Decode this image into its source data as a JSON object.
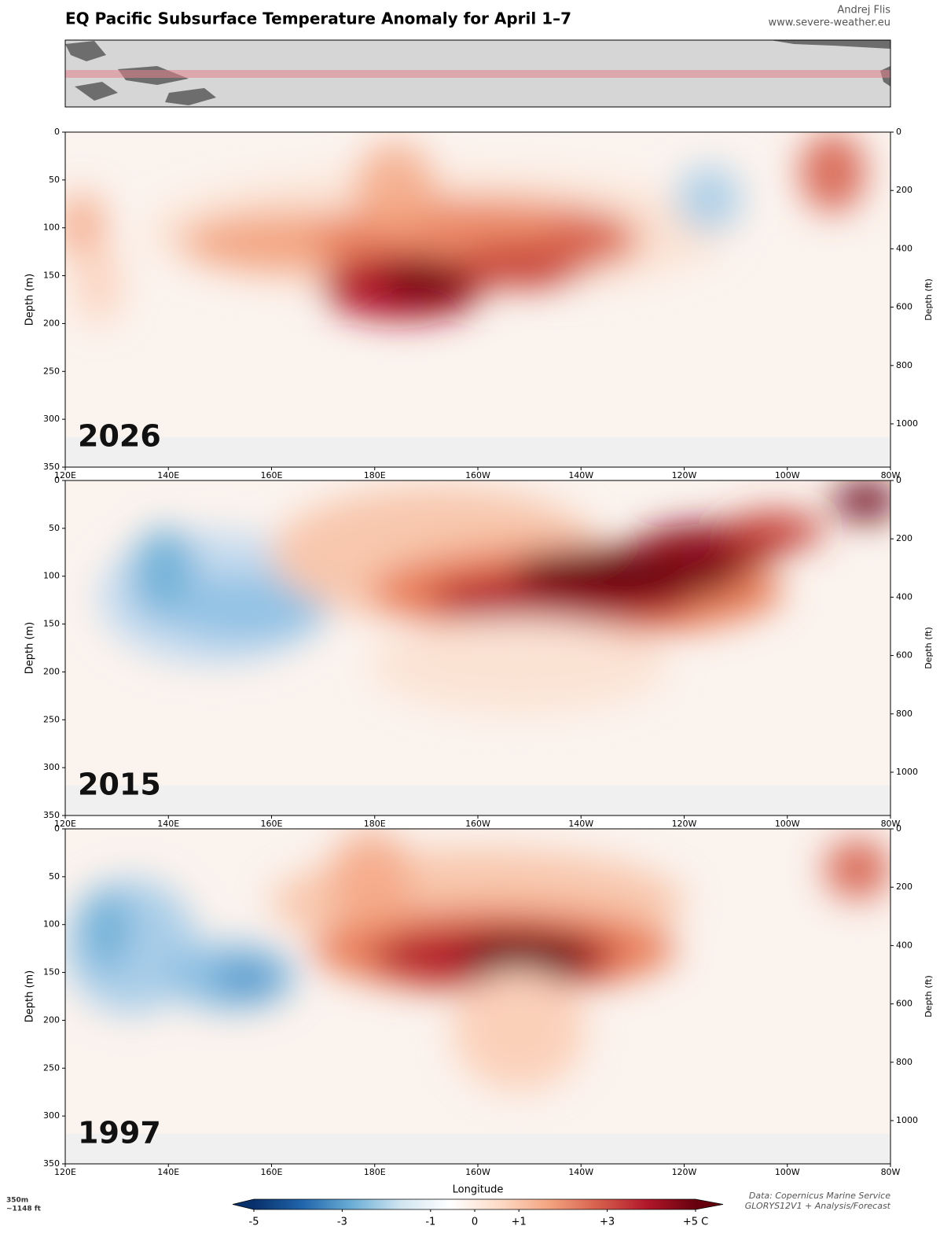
{
  "title": "EQ Pacific Subsurface Temperature Anomaly for April 1–7",
  "author": "Andrej Flis",
  "website": "www.severe-weather.eu",
  "chart_data": [
    {
      "type": "contour",
      "label": "2026",
      "ylabel": "Depth (m)",
      "y2label": "Depth (ft)",
      "xlim": [
        120,
        280
      ],
      "xticks": [
        {
          "value": 120,
          "label": "120E"
        },
        {
          "value": 140,
          "label": "140E"
        },
        {
          "value": 160,
          "label": "160E"
        },
        {
          "value": 180,
          "label": "180E"
        },
        {
          "value": 200,
          "label": "160W"
        },
        {
          "value": 220,
          "label": "140W"
        },
        {
          "value": 240,
          "label": "120W"
        },
        {
          "value": 260,
          "label": "100W"
        },
        {
          "value": 280,
          "label": "80W"
        }
      ],
      "ylim": [
        350,
        0
      ],
      "yticks": [
        0,
        50,
        100,
        150,
        200,
        250,
        300,
        350
      ],
      "y2lim": [
        1148.3,
        0
      ],
      "y2ticks": [
        0,
        200,
        400,
        600,
        800,
        1000
      ]
    },
    {
      "type": "contour",
      "label": "2015",
      "ylabel": "Depth (m)",
      "y2label": "Depth (ft)",
      "xlim": [
        120,
        280
      ],
      "xticks": [
        {
          "value": 120,
          "label": "120E"
        },
        {
          "value": 140,
          "label": "140E"
        },
        {
          "value": 160,
          "label": "160E"
        },
        {
          "value": 180,
          "label": "180E"
        },
        {
          "value": 200,
          "label": "160W"
        },
        {
          "value": 220,
          "label": "140W"
        },
        {
          "value": 240,
          "label": "120W"
        },
        {
          "value": 260,
          "label": "100W"
        },
        {
          "value": 280,
          "label": "80W"
        }
      ],
      "ylim": [
        350,
        0
      ],
      "yticks": [
        0,
        50,
        100,
        150,
        200,
        250,
        300,
        350
      ],
      "y2lim": [
        1148.3,
        0
      ],
      "y2ticks": [
        0,
        200,
        400,
        600,
        800,
        1000
      ]
    },
    {
      "type": "contour",
      "label": "1997",
      "ylabel": "Depth (m)",
      "y2label": "Depth (ft)",
      "xlabel": "Longitude",
      "xlim": [
        120,
        280
      ],
      "xticks": [
        {
          "value": 120,
          "label": "120E"
        },
        {
          "value": 140,
          "label": "140E"
        },
        {
          "value": 160,
          "label": "160E"
        },
        {
          "value": 180,
          "label": "180E"
        },
        {
          "value": 200,
          "label": "160W"
        },
        {
          "value": 220,
          "label": "140W"
        },
        {
          "value": 240,
          "label": "120W"
        },
        {
          "value": 260,
          "label": "100W"
        },
        {
          "value": 280,
          "label": "80W"
        }
      ],
      "ylim": [
        350,
        0
      ],
      "yticks": [
        0,
        50,
        100,
        150,
        200,
        250,
        300,
        350
      ],
      "y2lim": [
        1148.3,
        0
      ],
      "y2ticks": [
        0,
        200,
        400,
        600,
        800,
        1000
      ]
    }
  ],
  "colorbar": {
    "xlim": [
      -5,
      5
    ],
    "xticks": [
      -5,
      -3,
      -1,
      0,
      {
        "value": 1,
        "label": "+1"
      },
      {
        "value": 3,
        "label": "+3"
      },
      {
        "value": 5,
        "label": "+5 C"
      }
    ],
    "colors": [
      "#08306b",
      "#2166ac",
      "#6baed6",
      "#d1e5f0",
      "#ffffff",
      "#fddbc7",
      "#f4a582",
      "#d6604d",
      "#b2182b",
      "#67000d"
    ]
  },
  "depth_note": [
    "350m",
    "~1148 ft"
  ],
  "source": [
    "Data: Copernicus Marine Service",
    "GLORYS12V1 + Analysis/Forecast"
  ]
}
